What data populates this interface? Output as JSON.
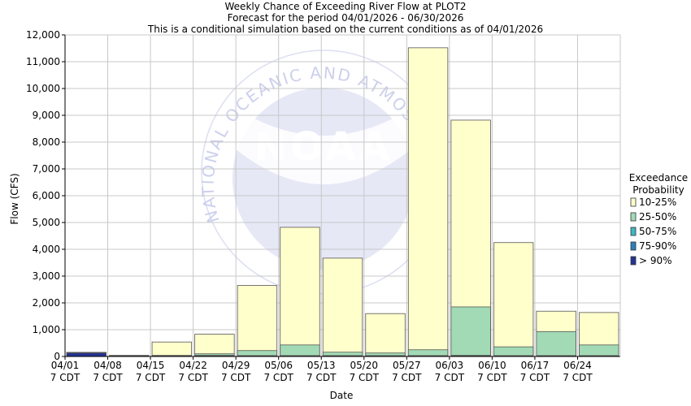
{
  "title_lines": [
    "Weekly Chance of Exceeding River Flow at PLOT2",
    "Forecast for the period 04/01/2026 - 06/30/2026",
    "This is a conditional simulation based on the current conditions as of 04/01/2026"
  ],
  "watermark": {
    "agency": "NOAA",
    "ring_text": "NATIONAL OCEANIC AND ATMOSPHERIC ADMINISTRATION"
  },
  "colors": {
    "p10_25": "#ffffcc",
    "p25_50": "#a1dab4",
    "p50_75": "#41b6c4",
    "p75_90": "#2c7fb8",
    "p90": "#253494",
    "watermark": "#c7cbea"
  },
  "chart_data": {
    "type": "bar",
    "title": "Weekly Chance of Exceeding River Flow at PLOT2",
    "xlabel": "Date",
    "ylabel": "Flow (CFS)",
    "ylim": [
      0,
      12000
    ],
    "grid": true,
    "categories": [
      "04/01",
      "04/08",
      "04/15",
      "04/22",
      "04/29",
      "05/06",
      "05/13",
      "05/20",
      "05/27",
      "06/03",
      "06/10",
      "06/17",
      "06/24"
    ],
    "category_sublabel": "7 CDT",
    "yticks": [
      "0",
      "1,000",
      "2,000",
      "3,000",
      "4,000",
      "5,000",
      "6,000",
      "7,000",
      "8,000",
      "9,000",
      "10,000",
      "11,000",
      "12,000"
    ],
    "series": [
      {
        "name": "> 90%",
        "values": [
          130,
          20,
          20,
          25,
          20,
          20,
          20,
          20,
          20,
          20,
          20,
          20,
          20
        ]
      },
      {
        "name": "75-90%",
        "values": [
          140,
          25,
          25,
          30,
          25,
          25,
          25,
          25,
          25,
          25,
          25,
          25,
          25
        ]
      },
      {
        "name": "50-75%",
        "values": [
          150,
          30,
          30,
          40,
          30,
          30,
          30,
          30,
          30,
          40,
          30,
          30,
          30
        ]
      },
      {
        "name": "25-50%",
        "values": [
          150,
          35,
          40,
          100,
          220,
          430,
          160,
          130,
          250,
          1850,
          360,
          930,
          430
        ]
      },
      {
        "name": "10-25%",
        "values": [
          150,
          40,
          540,
          830,
          2650,
          4820,
          3670,
          1600,
          11520,
          8820,
          4250,
          1690,
          1640
        ]
      }
    ],
    "legend": {
      "title": "Exceedance Probability",
      "title_lines": [
        "Exceedance",
        "Probability"
      ],
      "position": "right",
      "entries": [
        "10-25%",
        "25-50%",
        "50-75%",
        "75-90%",
        "> 90%"
      ]
    }
  }
}
